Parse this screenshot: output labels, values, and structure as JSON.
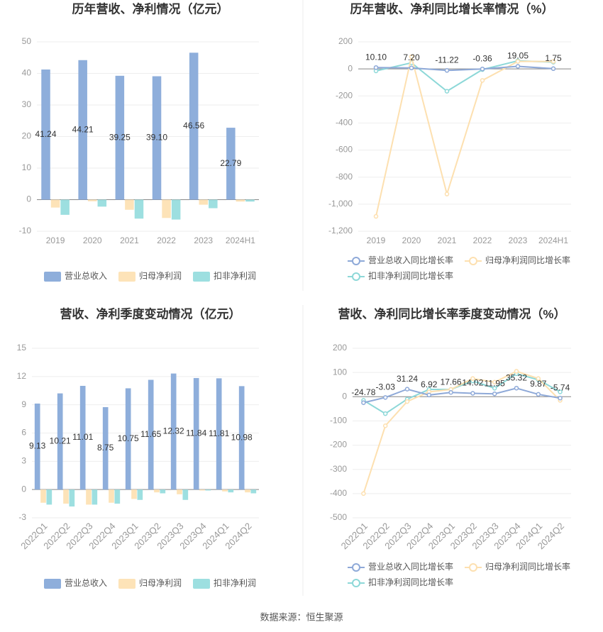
{
  "chart_data": [
    {
      "type": "bar",
      "title": "历年营收、净利情况（亿元）",
      "categories": [
        "2019",
        "2020",
        "2021",
        "2022",
        "2023",
        "2024H1"
      ],
      "series": [
        {
          "name": "营业总收入",
          "color": "#8eaedb",
          "values": [
            41.24,
            44.21,
            39.25,
            39.1,
            46.56,
            22.79
          ],
          "value_labels": [
            "41.24",
            "44.21",
            "39.25",
            "39.10",
            "46.56",
            "22.79"
          ]
        },
        {
          "name": "归母净利润",
          "color": "#fde3b8",
          "values": [
            -2.5,
            -0.5,
            -3.2,
            -5.8,
            -1.6,
            -0.6
          ]
        },
        {
          "name": "扣非净利润",
          "color": "#9ddfe0",
          "values": [
            -4.8,
            -2.2,
            -6.0,
            -6.3,
            -2.7,
            -0.6
          ]
        }
      ],
      "ylim": [
        -10,
        50
      ],
      "yticks": [
        -10,
        0,
        10,
        20,
        30,
        40,
        50
      ],
      "grid": true,
      "legend": "bottom"
    },
    {
      "type": "line",
      "title": "历年营收、净利同比增长率情况（%）",
      "categories": [
        "2019",
        "2020",
        "2021",
        "2022",
        "2023",
        "2024H1"
      ],
      "series": [
        {
          "name": "营业总收入同比增长率",
          "color": "#8ea9d8",
          "values": [
            10.1,
            7.2,
            -11.22,
            -0.36,
            19.05,
            1.75
          ],
          "value_labels": [
            "10.10",
            "7.20",
            "-11.22",
            "-0.36",
            "19.05",
            "1.75"
          ]
        },
        {
          "name": "归母净利润同比增长率",
          "color": "#fde0b0",
          "values": [
            -1090,
            90,
            -925,
            -85,
            55,
            55
          ]
        },
        {
          "name": "扣非净利润同比增长率",
          "color": "#8dd8d8",
          "values": [
            -15,
            45,
            -165,
            -5,
            60,
            50
          ]
        }
      ],
      "ylim": [
        -1200,
        200
      ],
      "yticks": [
        {
          "value": -1200,
          "label": "-1,200"
        },
        {
          "value": -1000,
          "label": "-1,000"
        },
        -800,
        -600,
        -400,
        -200,
        0,
        200
      ],
      "grid": true,
      "legend": "bottom"
    },
    {
      "type": "bar",
      "title": "营收、净利季度变动情况（亿元）",
      "categories": [
        "2022Q1",
        "2022Q2",
        "2022Q3",
        "2022Q4",
        "2023Q1",
        "2023Q2",
        "2023Q3",
        "2023Q4",
        "2024Q1",
        "2024Q2"
      ],
      "series": [
        {
          "name": "营业总收入",
          "color": "#8eaedb",
          "values": [
            9.13,
            10.21,
            11.01,
            8.75,
            10.75,
            11.65,
            12.32,
            11.84,
            11.81,
            10.98
          ],
          "value_labels": [
            "9.13",
            "10.21",
            "11.01",
            "8.75",
            "10.75",
            "11.65",
            "12.32",
            "11.84",
            "11.81",
            "10.98"
          ]
        },
        {
          "name": "归母净利润",
          "color": "#fde3b8",
          "values": [
            -1.4,
            -1.5,
            -1.6,
            -1.4,
            -1.0,
            -0.3,
            -0.5,
            -0.1,
            -0.2,
            -0.3
          ]
        },
        {
          "name": "扣非净利润",
          "color": "#9ddfe0",
          "values": [
            -1.6,
            -1.8,
            -1.6,
            -1.5,
            -1.1,
            -0.4,
            -1.1,
            -0.1,
            -0.3,
            -0.4
          ]
        }
      ],
      "ylim": [
        -3,
        15
      ],
      "yticks": [
        -3,
        0,
        3,
        6,
        9,
        12,
        15
      ],
      "grid": true,
      "legend": "bottom"
    },
    {
      "type": "line",
      "title": "营收、净利同比增长率季度变动情况（%）",
      "categories": [
        "2022Q1",
        "2022Q2",
        "2022Q3",
        "2022Q4",
        "2023Q1",
        "2023Q2",
        "2023Q3",
        "2023Q4",
        "2024Q1",
        "2024Q2"
      ],
      "series": [
        {
          "name": "营业总收入同比增长率",
          "color": "#8ea9d8",
          "values": [
            -24.78,
            -3.03,
            31.24,
            6.92,
            17.66,
            14.02,
            11.95,
            35.32,
            9.87,
            -5.74
          ]
        },
        {
          "name": "归母净利润同比增长率",
          "color": "#fde0b0",
          "values": [
            -400,
            -120,
            -20,
            20,
            30,
            75,
            60,
            105,
            75,
            -15
          ]
        },
        {
          "name": "扣非净利润同比增长率",
          "color": "#8dd8d8",
          "values": [
            -15,
            -70,
            -10,
            30,
            30,
            65,
            35,
            95,
            70,
            20
          ]
        }
      ],
      "ylim": [
        -500,
        200
      ],
      "yticks": [
        -500,
        -400,
        -300,
        -200,
        -100,
        0,
        100,
        200
      ],
      "grid": true,
      "legend": "bottom"
    }
  ],
  "source": "数据来源：恒生聚源"
}
